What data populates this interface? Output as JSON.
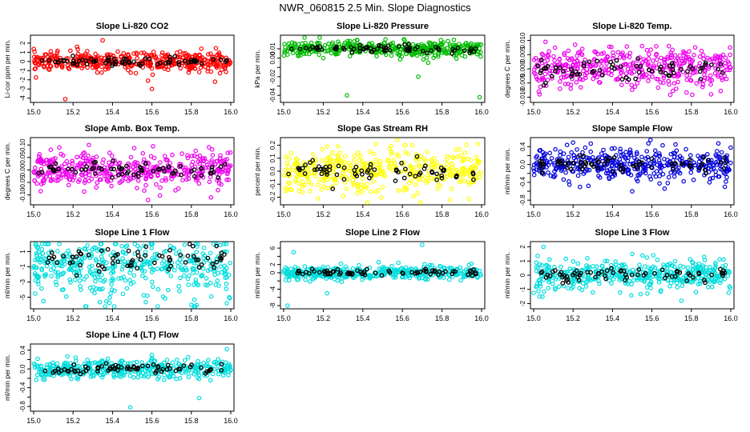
{
  "page_title": "NWR_060815  2.5 Min. Slope Diagnostics",
  "chart_data": [
    {
      "type": "scatter",
      "title": "Slope Li-820 CO2",
      "ylabel": "Li-cor ppm per min.",
      "color": "#ff0000",
      "xlim": [
        15.0,
        16.0
      ],
      "ylim": [
        -4.2,
        2.6
      ],
      "xticks": [
        15.0,
        15.2,
        15.4,
        15.6,
        15.8,
        16.0
      ],
      "yticks": [
        -4,
        -3,
        -2,
        -1,
        0,
        1,
        2
      ],
      "center": 0.0,
      "spread": 0.5,
      "outliers": [
        [
          15.16,
          -4.1
        ],
        [
          15.35,
          2.3
        ],
        [
          15.6,
          -3.0
        ],
        [
          15.22,
          1.6
        ],
        [
          15.58,
          -2.1
        ],
        [
          15.92,
          -2.2
        ]
      ]
    },
    {
      "type": "scatter",
      "title": "Slope Li-820 Pressure",
      "ylabel": "kPa per min.",
      "color": "#00bb00",
      "xlim": [
        15.0,
        16.0
      ],
      "ylim": [
        -0.045,
        0.022
      ],
      "xticks": [
        15.0,
        15.2,
        15.4,
        15.6,
        15.8,
        16.0
      ],
      "yticks": [
        -0.04,
        -0.03,
        -0.02,
        -0.01,
        0.0,
        0.01
      ],
      "yticklabels": [
        "-0.04",
        "",
        "-0.02",
        "",
        "0.00",
        "0.01"
      ],
      "center": 0.01,
      "spread": 0.004,
      "outliers": [
        [
          15.32,
          -0.04
        ],
        [
          15.68,
          -0.02
        ],
        [
          15.99,
          -0.042
        ],
        [
          15.73,
          -0.005
        ],
        [
          15.2,
          0.0
        ]
      ]
    },
    {
      "type": "scatter",
      "title": "Slope Li-820 Temp.",
      "ylabel": "degrees C per min.",
      "color": "#ee00ee",
      "xlim": [
        15.0,
        16.0
      ],
      "ylim": [
        -0.011,
        0.011
      ],
      "xticks": [
        15.0,
        15.2,
        15.4,
        15.6,
        15.8,
        16.0
      ],
      "yticks": [
        -0.01,
        -0.005,
        0.0,
        0.005,
        0.01
      ],
      "yticklabels": [
        "-0.010",
        "-0.005",
        "0.000",
        "0.005",
        "0.010"
      ],
      "center": 0.0,
      "spread": 0.0035,
      "outliers": [
        [
          15.06,
          0.0095
        ],
        [
          15.21,
          0.0085
        ],
        [
          15.55,
          0.008
        ],
        [
          15.9,
          -0.009
        ],
        [
          15.03,
          -0.009
        ]
      ]
    },
    {
      "type": "scatter",
      "title": "Slope Amb. Box Temp.",
      "ylabel": "degrees C per min.",
      "color": "#ee00ee",
      "xlim": [
        15.0,
        16.0
      ],
      "ylim": [
        -0.13,
        0.12
      ],
      "xticks": [
        15.0,
        15.2,
        15.4,
        15.6,
        15.8,
        16.0
      ],
      "yticks": [
        -0.1,
        -0.05,
        0.0,
        0.05,
        0.1
      ],
      "yticklabels": [
        "-0.10",
        "-0.05",
        "0.00",
        "0.05",
        "0.10"
      ],
      "center": 0.0,
      "spread": 0.035,
      "outliers": [
        [
          15.28,
          0.1
        ],
        [
          15.58,
          -0.12
        ],
        [
          15.9,
          -0.11
        ],
        [
          15.13,
          0.09
        ]
      ]
    },
    {
      "type": "scatter",
      "title": "Slope Gas Stream RH",
      "ylabel": "percent per min.",
      "color": "#ffff00",
      "xlim": [
        15.0,
        16.0
      ],
      "ylim": [
        -0.24,
        0.24
      ],
      "xticks": [
        15.0,
        15.2,
        15.4,
        15.6,
        15.8,
        16.0
      ],
      "yticks": [
        -0.2,
        -0.1,
        0.0,
        0.1,
        0.2
      ],
      "yticklabels": [
        "-0.2",
        "-0.1",
        "0.0",
        "0.1",
        "0.2"
      ],
      "center": 0.0,
      "spread": 0.08,
      "outliers": [
        [
          15.65,
          0.2
        ],
        [
          15.84,
          -0.22
        ],
        [
          15.98,
          0.21
        ],
        [
          15.22,
          0.19
        ]
      ]
    },
    {
      "type": "scatter",
      "title": "Slope Sample Flow",
      "ylabel": "ml/min per min.",
      "color": "#0000dd",
      "xlim": [
        15.0,
        16.0
      ],
      "ylim": [
        -0.85,
        0.55
      ],
      "xticks": [
        15.0,
        15.2,
        15.4,
        15.6,
        15.8,
        16.0
      ],
      "yticks": [
        -0.8,
        -0.6,
        -0.4,
        -0.2,
        0.0,
        0.2,
        0.4
      ],
      "yticklabels": [
        "-0.8",
        "",
        "-0.4",
        "",
        "0.0",
        "",
        "0.4"
      ],
      "center": 0.0,
      "spread": 0.18,
      "outliers": [
        [
          15.29,
          0.47
        ],
        [
          15.72,
          0.45
        ],
        [
          15.5,
          -0.6
        ],
        [
          15.97,
          -0.5
        ]
      ]
    },
    {
      "type": "scatter",
      "title": "Slope Line 1 Flow",
      "ylabel": "ml/min per min.",
      "color": "#00dddd",
      "xlim": [
        15.0,
        16.0
      ],
      "ylim": [
        -6.2,
        2.0
      ],
      "xticks": [
        15.0,
        15.2,
        15.4,
        15.6,
        15.8,
        16.0
      ],
      "yticks": [
        -5,
        -3,
        -1,
        1
      ],
      "center": 0.0,
      "spread": 1.5,
      "skew": "down",
      "outliers": [
        [
          15.02,
          1.5
        ],
        [
          15.98,
          -5.8
        ],
        [
          15.8,
          -6.0
        ],
        [
          15.05,
          -5.5
        ]
      ]
    },
    {
      "type": "scatter",
      "title": "Slope Line 2 Flow",
      "ylabel": "ml/min per min.",
      "color": "#00dddd",
      "xlim": [
        15.0,
        16.0
      ],
      "ylim": [
        -8.2,
        7.0
      ],
      "xticks": [
        15.0,
        15.2,
        15.4,
        15.6,
        15.8,
        16.0
      ],
      "yticks": [
        -8,
        -6,
        -4,
        -2,
        0,
        2,
        4,
        6
      ],
      "yticklabels": [
        "-8",
        "",
        "-4",
        "",
        "0",
        "2",
        "",
        "6"
      ],
      "center": 0.0,
      "spread": 0.8,
      "outliers": [
        [
          15.05,
          5.0
        ],
        [
          15.7,
          6.8
        ],
        [
          15.02,
          -8.0
        ],
        [
          15.22,
          -5.0
        ]
      ]
    },
    {
      "type": "scatter",
      "title": "Slope Line 3 Flow",
      "ylabel": "ml/min per min.",
      "color": "#00dddd",
      "xlim": [
        15.0,
        16.0
      ],
      "ylim": [
        -2.2,
        2.2
      ],
      "xticks": [
        15.0,
        15.2,
        15.4,
        15.6,
        15.8,
        16.0
      ],
      "yticks": [
        -2,
        -1,
        0,
        1,
        2
      ],
      "center": 0.0,
      "spread": 0.5,
      "outliers": [
        [
          15.05,
          2.0
        ],
        [
          15.03,
          -1.5
        ],
        [
          15.75,
          -1.8
        ],
        [
          15.5,
          1.5
        ]
      ]
    },
    {
      "type": "scatter",
      "title": "Slope Line 4 (LT) Flow",
      "ylabel": "ml/min per min.",
      "color": "#00dddd",
      "xlim": [
        15.0,
        16.0
      ],
      "ylim": [
        -0.85,
        0.48
      ],
      "xticks": [
        15.0,
        15.2,
        15.4,
        15.6,
        15.8,
        16.0
      ],
      "yticks": [
        -0.8,
        -0.6,
        -0.4,
        -0.2,
        0.0,
        0.2,
        0.4
      ],
      "yticklabels": [
        "-0.8",
        "",
        "-0.4",
        "",
        "0.0",
        "",
        "0.4"
      ],
      "center": 0.0,
      "spread": 0.1,
      "outliers": [
        [
          15.49,
          -0.82
        ],
        [
          15.84,
          -0.62
        ],
        [
          15.98,
          0.42
        ],
        [
          15.6,
          0.3
        ]
      ]
    }
  ]
}
